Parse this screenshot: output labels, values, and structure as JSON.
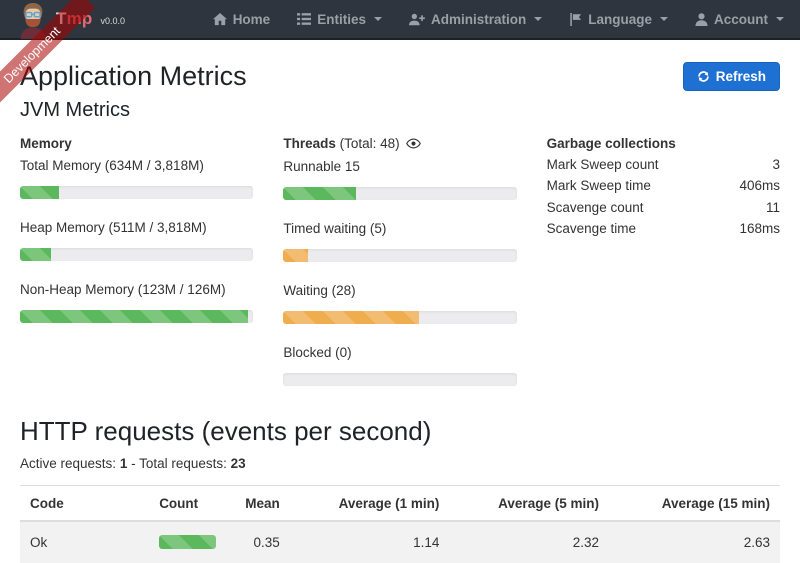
{
  "colors": {
    "navbar_bg": "#2e353e",
    "accent_blue": "#1e70d2",
    "bar_green": "#5cb85c",
    "bar_orange": "#f0ad4e",
    "ribbon_red": "rgba(170,0,0,0.55)"
  },
  "ribbon": {
    "label": "Development"
  },
  "navbar": {
    "brand": {
      "name_first": "T",
      "name_rest": "mp",
      "version": "v0.0.0"
    },
    "items": [
      {
        "label": "Home",
        "icon": "home-icon",
        "has_dropdown": false
      },
      {
        "label": "Entities",
        "icon": "entities-list-icon",
        "has_dropdown": true
      },
      {
        "label": "Administration",
        "icon": "user-plus-icon",
        "has_dropdown": true
      },
      {
        "label": "Language",
        "icon": "flag-icon",
        "has_dropdown": true
      },
      {
        "label": "Account",
        "icon": "user-icon",
        "has_dropdown": true
      }
    ]
  },
  "page": {
    "title": "Application Metrics",
    "refresh_label": "Refresh"
  },
  "jvm": {
    "title": "JVM Metrics",
    "memory": {
      "title": "Memory",
      "bars": [
        {
          "label": "Total Memory (634M / 3,818M)",
          "percent": 16.6,
          "color": "green"
        },
        {
          "label": "Heap Memory (511M / 3,818M)",
          "percent": 13.4,
          "color": "green"
        },
        {
          "label": "Non-Heap Memory (123M / 126M)",
          "percent": 97.6,
          "color": "green"
        }
      ]
    },
    "threads": {
      "title": "Threads",
      "total": "(Total: 48)",
      "bars": [
        {
          "label": "Runnable 15",
          "percent": 31.3,
          "color": "green"
        },
        {
          "label": "Timed waiting (5)",
          "percent": 10.4,
          "color": "orange"
        },
        {
          "label": "Waiting (28)",
          "percent": 58.3,
          "color": "orange"
        },
        {
          "label": "Blocked (0)",
          "percent": 0,
          "color": "orange"
        }
      ]
    },
    "gc": {
      "title": "Garbage collections",
      "rows": [
        {
          "label": "Mark Sweep count",
          "value": "3"
        },
        {
          "label": "Mark Sweep time",
          "value": "406ms"
        },
        {
          "label": "Scavenge count",
          "value": "11"
        },
        {
          "label": "Scavenge time",
          "value": "168ms"
        }
      ]
    }
  },
  "http": {
    "title": "HTTP requests (events per second)",
    "active_label": "Active requests:",
    "active_value": "1",
    "dash": "-",
    "total_label": "Total requests:",
    "total_value": "23",
    "table": {
      "headers": [
        "Code",
        "Count",
        "Mean",
        "Average (1 min)",
        "Average (5 min)",
        "Average (15 min)"
      ],
      "rows": [
        {
          "code": "Ok",
          "count_percent": 100,
          "count_color": "green",
          "mean": "0.35",
          "avg_1min": "1.14",
          "avg_5min": "2.32",
          "avg_15min": "2.63"
        }
      ]
    }
  }
}
